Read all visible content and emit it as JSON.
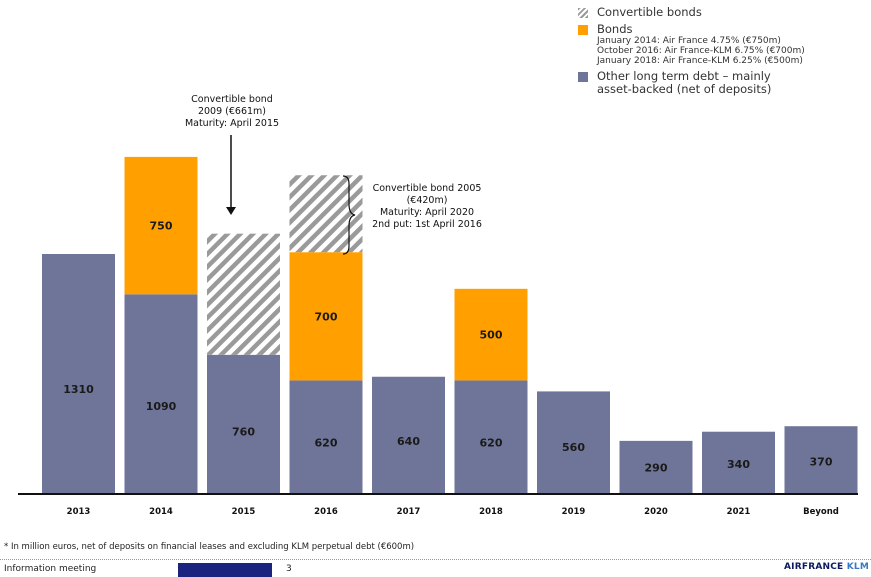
{
  "chart_data": {
    "type": "bar",
    "stacked": true,
    "categories": [
      "2013",
      "2014",
      "2015",
      "2016",
      "2017",
      "2018",
      "2019",
      "2020",
      "2021",
      "Beyond"
    ],
    "series": [
      {
        "name": "Other long term debt – mainly asset-backed (net of deposits)",
        "color": "#6f7598",
        "values": [
          1310,
          1090,
          760,
          620,
          640,
          620,
          560,
          290,
          340,
          370
        ],
        "labels": [
          "1310",
          "1090",
          "760",
          "620",
          "640",
          "620",
          "560",
          "290",
          "340",
          "370"
        ]
      },
      {
        "name": "Bonds",
        "color": "#ffa000",
        "values": [
          0,
          750,
          0,
          700,
          0,
          500,
          0,
          0,
          0,
          0
        ],
        "labels": [
          "",
          "750",
          "",
          "700",
          "",
          "500",
          "",
          "",
          "",
          ""
        ]
      },
      {
        "name": "Convertible bonds",
        "color": "#9a9a9a",
        "pattern": "hatch",
        "values": [
          0,
          0,
          661,
          420,
          0,
          0,
          0,
          0,
          0,
          0
        ],
        "labels": [
          "",
          "",
          "",
          "",
          "",
          "",
          "",
          "",
          "",
          ""
        ]
      }
    ],
    "ylim": [
      0,
      1900
    ],
    "grid": false,
    "legend_placement": "top-right",
    "annotations": {
      "convertible_2009": [
        "Convertible bond",
        "2009 (€661m)",
        "Maturity:  April 2015"
      ],
      "convertible_2005": [
        "Convertible bond 2005",
        "(€420m)",
        "Maturity:  April 2020",
        "2nd put: 1st April 2016"
      ]
    }
  },
  "legend": {
    "convertible": "Convertible bonds",
    "bonds": "Bonds",
    "bonds_details": [
      "January 2014: Air France 4.75% (€750m)",
      "October 2016: Air France-KLM 6.75% (€700m)",
      "January 2018: Air France-KLM 6.25% (€500m)"
    ],
    "other_line1": "Other long term debt – mainly",
    "other_line2": "asset-backed (net of deposits)"
  },
  "footnote": "* In million euros, net of deposits on financial leases and excluding KLM perpetual debt (€600m)",
  "footer": {
    "left": "Information meeting",
    "page": "3",
    "logo_part1": "AIRFRANCE",
    "logo_part2": "KLM"
  },
  "colors": {
    "other": "#6f7598",
    "bonds": "#ffa000",
    "hatch": "#9a9a9a",
    "footer_bar": "#1a237e"
  }
}
